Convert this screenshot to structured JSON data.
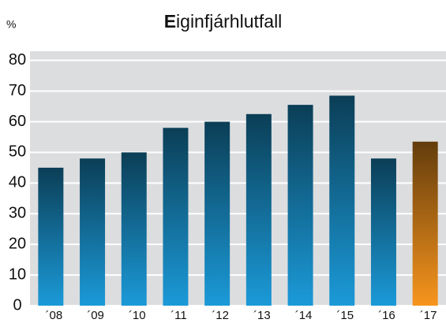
{
  "chart_data": {
    "type": "bar",
    "title": "Eiginfjárhlutfall",
    "y_label": "%",
    "categories": [
      "´08",
      "´09",
      "´10",
      "´11",
      "´12",
      "´13",
      "´14",
      "´15",
      "´16",
      "´17"
    ],
    "values": [
      45,
      48,
      50,
      58,
      60,
      62.5,
      65.5,
      68.5,
      48,
      53.5
    ],
    "colors": [
      "#1b9ad8",
      "#1b9ad8",
      "#1b9ad8",
      "#1b9ad8",
      "#1b9ad8",
      "#1b9ad8",
      "#1b9ad8",
      "#1b9ad8",
      "#1b9ad8",
      "#f7951d"
    ],
    "ylim": [
      0,
      83
    ],
    "yticks": [
      0,
      10,
      20,
      30,
      40,
      50,
      60,
      70,
      80
    ],
    "grid": true
  }
}
